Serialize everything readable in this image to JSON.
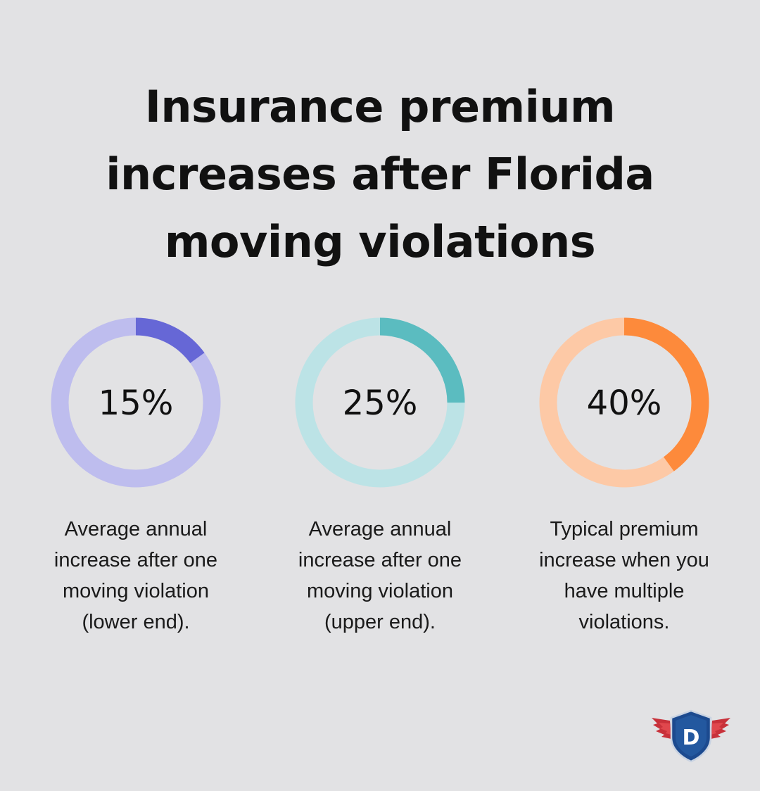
{
  "title_lines": [
    "Insurance premium",
    "increases after Florida",
    "moving violations"
  ],
  "chart_data": {
    "type": "donut",
    "title": "Insurance premium increases after Florida moving violations",
    "items": [
      {
        "value": 15,
        "label": "15%",
        "description_lines": [
          "Average annual",
          "increase after one",
          "moving violation",
          "(lower end)."
        ],
        "color": "#6667d6",
        "track_color": "#bebdee"
      },
      {
        "value": 25,
        "label": "25%",
        "description_lines": [
          "Average annual",
          "increase after one",
          "moving violation",
          "(upper end)."
        ],
        "color": "#5bbcc0",
        "track_color": "#bce3e6"
      },
      {
        "value": 40,
        "label": "40%",
        "description_lines": [
          "Typical premium",
          "increase when you",
          "have multiple",
          "violations."
        ],
        "color": "#fd8a3b",
        "track_color": "#fdc9a6"
      }
    ]
  },
  "logo": {
    "letter": "D",
    "icon": "winged-shield-logo-icon"
  }
}
